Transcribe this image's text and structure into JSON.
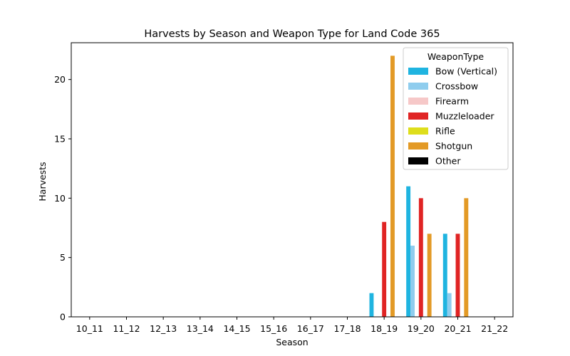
{
  "chart_data": {
    "type": "bar",
    "title": "Harvests by Season and Weapon Type for Land Code 365",
    "xlabel": "Season",
    "ylabel": "Harvests",
    "ylim": [
      0,
      23.1
    ],
    "yticks": [
      0,
      5,
      10,
      15,
      20
    ],
    "categories": [
      "10_11",
      "11_12",
      "12_13",
      "13_14",
      "14_15",
      "15_16",
      "16_17",
      "17_18",
      "18_19",
      "19_20",
      "20_21",
      "21_22"
    ],
    "legend": {
      "title": "WeaponType",
      "placement": "top-right"
    },
    "grid": false,
    "series": [
      {
        "name": "Bow (Vertical)",
        "color": "#1fb4e0",
        "values": [
          0,
          0,
          0,
          0,
          0,
          0,
          0,
          0,
          2,
          11,
          7,
          0
        ]
      },
      {
        "name": "Crossbow",
        "color": "#8fcdee",
        "values": [
          0,
          0,
          0,
          0,
          0,
          0,
          0,
          0,
          0,
          6,
          2,
          0
        ]
      },
      {
        "name": "Firearm",
        "color": "#f6c8c8",
        "values": [
          0,
          0,
          0,
          0,
          0,
          0,
          0,
          0,
          0,
          0,
          0,
          0
        ]
      },
      {
        "name": "Muzzleloader",
        "color": "#e02424",
        "values": [
          0,
          0,
          0,
          0,
          0,
          0,
          0,
          0,
          8,
          10,
          7,
          0
        ]
      },
      {
        "name": "Rifle",
        "color": "#dede1c",
        "values": [
          0,
          0,
          0,
          0,
          0,
          0,
          0,
          0,
          0,
          0,
          0,
          0
        ]
      },
      {
        "name": "Shotgun",
        "color": "#e39a26",
        "values": [
          0,
          0,
          0,
          0,
          0,
          0,
          0,
          0,
          22,
          7,
          10,
          0
        ]
      },
      {
        "name": "Other",
        "color": "#000000",
        "values": [
          0,
          0,
          0,
          0,
          0,
          0,
          0,
          0,
          0,
          0,
          0,
          0
        ]
      }
    ]
  }
}
